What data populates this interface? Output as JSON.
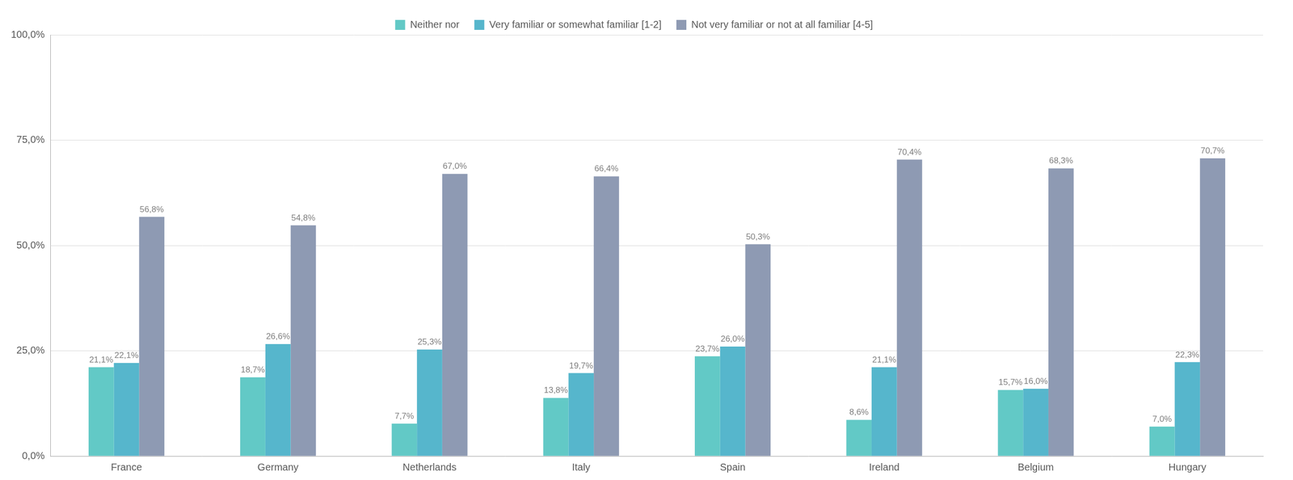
{
  "chart_data": {
    "type": "bar",
    "categories": [
      "France",
      "Germany",
      "Netherlands",
      "Italy",
      "Spain",
      "Ireland",
      "Belgium",
      "Hungary"
    ],
    "series": [
      {
        "name": "Neither nor",
        "color": "#62c9c6",
        "values": [
          21.1,
          18.7,
          7.7,
          13.8,
          23.7,
          8.6,
          15.7,
          7.0
        ],
        "value_labels": [
          "21,1%",
          "18,7%",
          "7,7%",
          "13,8%",
          "23,7%",
          "8,6%",
          "15,7%",
          "7,0%"
        ]
      },
      {
        "name": "Very familiar or somewhat familiar [1-2]",
        "color": "#56b6cc",
        "values": [
          22.1,
          26.6,
          25.3,
          19.7,
          26.0,
          21.1,
          16.0,
          22.3
        ],
        "value_labels": [
          "22,1%",
          "26,6%",
          "25,3%",
          "19,7%",
          "26,0%",
          "21,1%",
          "16,0%",
          "22,3%"
        ]
      },
      {
        "name": "Not very familiar or not at all familiar [4-5]",
        "color": "#8e9ab3",
        "values": [
          56.8,
          54.8,
          67.0,
          66.4,
          50.3,
          70.4,
          68.3,
          70.7
        ],
        "value_labels": [
          "56,8%",
          "54,8%",
          "67,0%",
          "66,4%",
          "50,3%",
          "70,4%",
          "68,3%",
          "70,7%"
        ]
      }
    ],
    "ylim": [
      0,
      100
    ],
    "yticks": [
      {
        "value": 0,
        "label": "0,0%"
      },
      {
        "value": 25,
        "label": "25,0%"
      },
      {
        "value": 50,
        "label": "50,0%"
      },
      {
        "value": 75,
        "label": "75,0%"
      },
      {
        "value": 100,
        "label": "100,0%"
      }
    ],
    "grid": true,
    "legend": "top",
    "data_labels": true
  }
}
